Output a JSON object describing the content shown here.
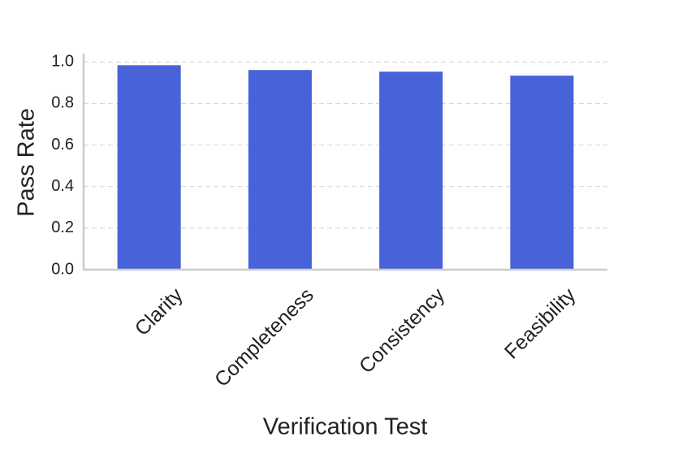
{
  "chart_data": {
    "type": "bar",
    "x_label": "Verification Test",
    "y_label": "Pass Rate",
    "categories": [
      "Clarity",
      "Completeness",
      "Consistency",
      "Feasibility"
    ],
    "values": [
      0.984,
      0.961,
      0.953,
      0.934
    ],
    "color": "#4863d9",
    "ylim": [
      0,
      1.04
    ],
    "yticks": [
      {
        "value": 0,
        "label": "0.0"
      },
      0.2,
      0.4,
      0.6,
      0.8,
      {
        "value": 1,
        "label": "1.0"
      }
    ],
    "grid": true
  }
}
